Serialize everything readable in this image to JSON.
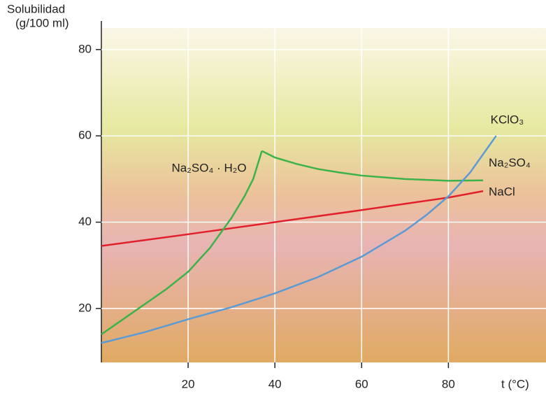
{
  "chart_data": {
    "type": "line",
    "y_label_lines": [
      "Solubilidad",
      "(g/100 ml)"
    ],
    "x_label": "t (°C)",
    "xlim": [
      0,
      102.5
    ],
    "ylim": [
      7.5,
      85
    ],
    "xticks": [
      20,
      40,
      60,
      80
    ],
    "yticks": [
      20,
      40,
      60,
      80
    ],
    "grid": true,
    "series": [
      {
        "name": "NaCl",
        "color": "#e0202a",
        "x": [
          0,
          20,
          40,
          60,
          80,
          88
        ],
        "values": [
          34.5,
          37.2,
          40,
          42.8,
          45.7,
          47.2
        ]
      },
      {
        "name": "Na₂SO₄ · H₂O",
        "color": "#3cb34a",
        "x": [
          0,
          5,
          10,
          15,
          20,
          25,
          30,
          33,
          35,
          37
        ],
        "values": [
          14,
          17.5,
          21,
          24.5,
          28.5,
          34,
          41,
          46,
          50,
          56.5
        ]
      },
      {
        "name": "Na₂SO₄",
        "color": "#3cb34a",
        "x": [
          37,
          40,
          45,
          50,
          55,
          60,
          70,
          80,
          88
        ],
        "values": [
          56.5,
          55,
          53.5,
          52.3,
          51.5,
          50.8,
          50,
          49.6,
          49.7
        ]
      },
      {
        "name": "KClO₃",
        "color": "#5b9bd5",
        "x": [
          0,
          10,
          20,
          30,
          40,
          50,
          60,
          70,
          75,
          80,
          85,
          91
        ],
        "values": [
          12,
          14.5,
          17.5,
          20.3,
          23.5,
          27.3,
          32,
          38,
          41.7,
          46,
          51.5,
          60
        ]
      }
    ]
  }
}
